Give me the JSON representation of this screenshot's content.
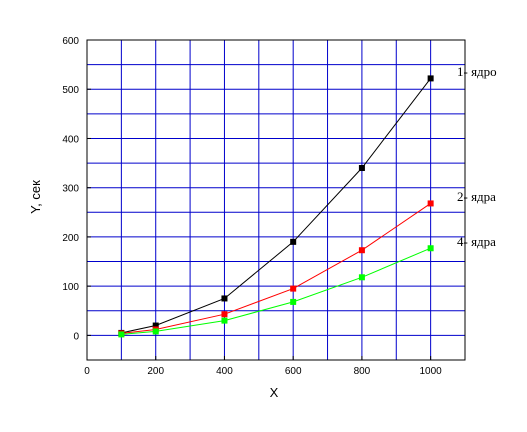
{
  "chart_data": {
    "type": "line",
    "xlabel": "X",
    "ylabel": "Y, сек",
    "xlim": [
      0,
      1100
    ],
    "ylim": [
      -50,
      600
    ],
    "x_ticks": [
      0,
      200,
      400,
      600,
      800,
      1000
    ],
    "y_ticks": [
      0,
      100,
      200,
      300,
      400,
      500,
      600
    ],
    "grid": true,
    "series": [
      {
        "name": "1- ядро",
        "color": "#000000",
        "x": [
          100,
          200,
          400,
          600,
          800,
          1000
        ],
        "values": [
          5,
          20,
          75,
          190,
          340,
          522
        ]
      },
      {
        "name": "2- ядра",
        "color": "#ff0000",
        "x": [
          100,
          200,
          400,
          600,
          800,
          1000
        ],
        "values": [
          4,
          12,
          43,
          95,
          173,
          268
        ]
      },
      {
        "name": "4- ядра",
        "color": "#00ff00",
        "x": [
          100,
          200,
          400,
          600,
          800,
          1000
        ],
        "values": [
          2,
          8,
          30,
          68,
          118,
          177
        ]
      }
    ]
  }
}
